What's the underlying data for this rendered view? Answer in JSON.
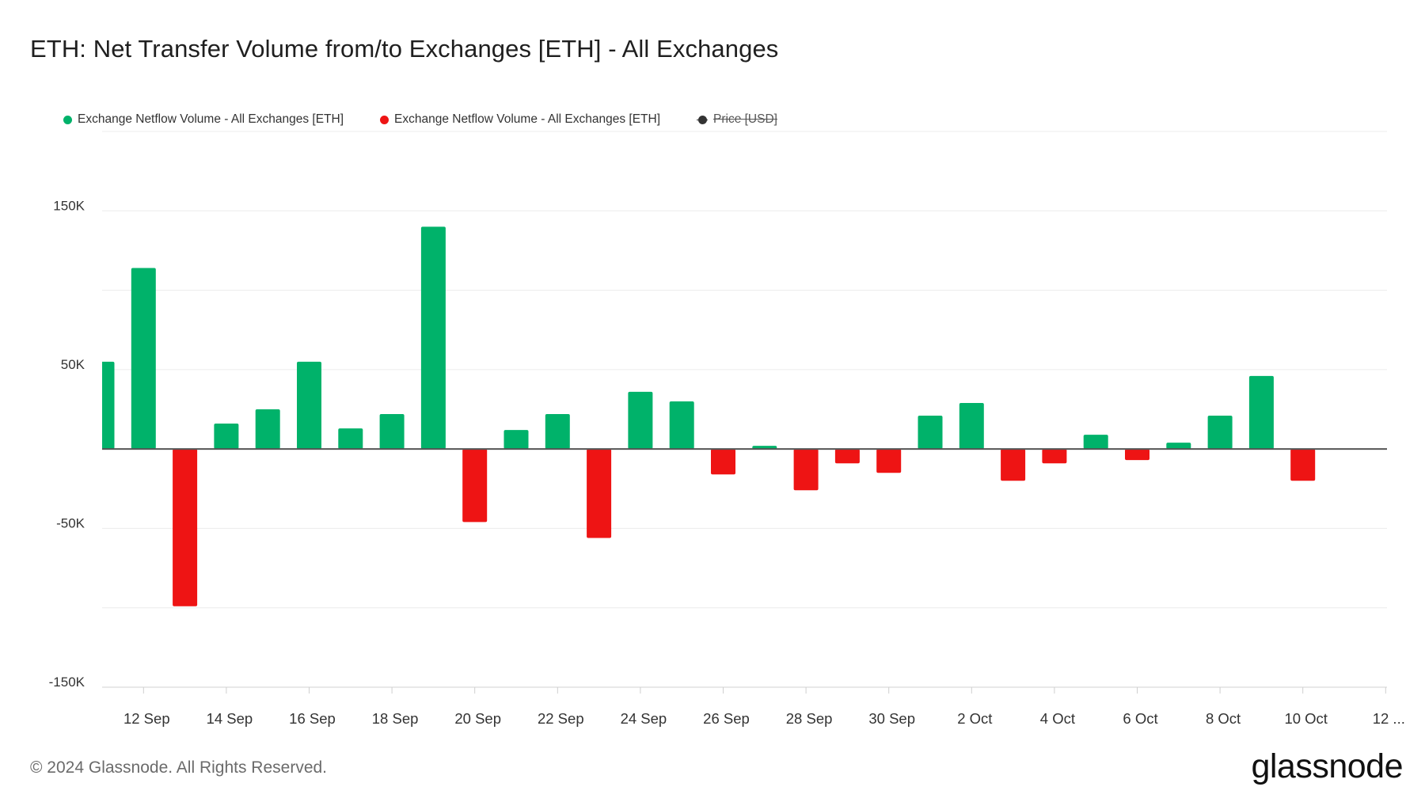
{
  "page": {
    "title": "ETH: Net Transfer Volume from/to Exchanges [ETH] - All Exchanges",
    "copyright": "© 2024 Glassnode. All Rights Reserved.",
    "brand": "glassnode"
  },
  "legend": [
    {
      "label": "Exchange Netflow Volume - All Exchanges [ETH]",
      "color": "#00b26a",
      "enabled": true
    },
    {
      "label": "Exchange Netflow Volume - All Exchanges [ETH]",
      "color": "#ee1414",
      "enabled": true
    },
    {
      "label": "Price [USD]",
      "color": "#333333",
      "enabled": false
    }
  ],
  "chart_data": {
    "type": "bar",
    "series": [
      {
        "values": [
          55000,
          114000,
          -99000,
          16000,
          25000,
          55000,
          13000,
          22000,
          140000,
          -46000,
          12000,
          22000,
          -56000,
          36000,
          30000,
          -16000,
          2000,
          -26000,
          -9000,
          -15000,
          21000,
          29000,
          -20000,
          -9000,
          9000,
          -7000,
          4000,
          21000,
          46000,
          -20000
        ]
      }
    ],
    "x": [
      "2024-09-11",
      "2024-09-12",
      "2024-09-13",
      "2024-09-14",
      "2024-09-15",
      "2024-09-16",
      "2024-09-17",
      "2024-09-18",
      "2024-09-19",
      "2024-09-20",
      "2024-09-21",
      "2024-09-22",
      "2024-09-23",
      "2024-09-24",
      "2024-09-25",
      "2024-09-26",
      "2024-09-27",
      "2024-09-28",
      "2024-09-29",
      "2024-09-30",
      "2024-10-01",
      "2024-10-02",
      "2024-10-03",
      "2024-10-04",
      "2024-10-05",
      "2024-10-06",
      "2024-10-07",
      "2024-10-08",
      "2024-10-09",
      "2024-10-10"
    ],
    "x_tick_labels": [
      "12 Sep",
      "14 Sep",
      "16 Sep",
      "18 Sep",
      "20 Sep",
      "22 Sep",
      "24 Sep",
      "26 Sep",
      "28 Sep",
      "30 Sep",
      "2 Oct",
      "4 Oct",
      "6 Oct",
      "8 Oct",
      "10 Oct",
      "12 ..."
    ],
    "y_tick_labels": [
      "150K",
      "50K",
      "-50K",
      "-150K"
    ],
    "y_tick_values": [
      150000,
      50000,
      -50000,
      -150000
    ],
    "ylim": [
      -150000,
      200000
    ],
    "positive_color": "#00b26a",
    "negative_color": "#ee1414",
    "grid": true,
    "legend_position": "top-left"
  }
}
